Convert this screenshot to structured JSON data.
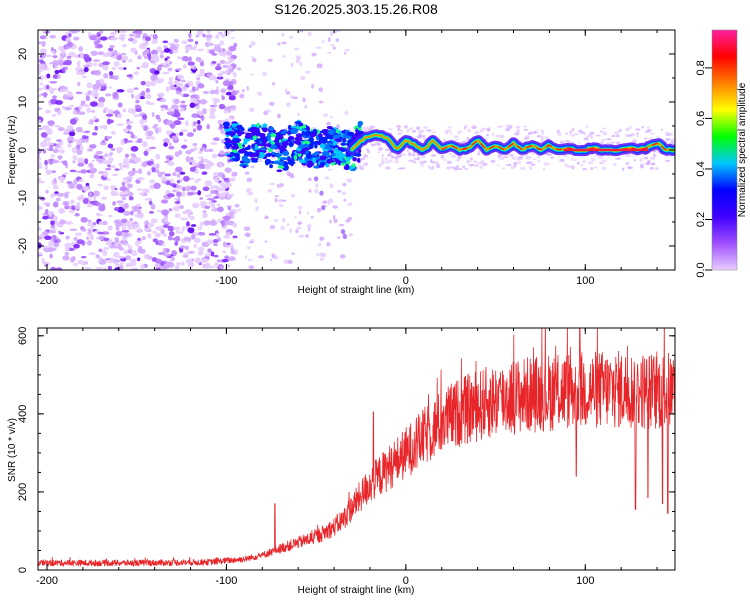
{
  "figure": {
    "title": "S126.2025.303.15.26.R08"
  },
  "chart_data": [
    {
      "type": "heatmap",
      "xlabel": "Height of straight line (km)",
      "ylabel": "Frequency (Hz)",
      "xlim": [
        -205,
        150
      ],
      "ylim": [
        -25,
        25
      ],
      "xticks": [
        -200,
        -100,
        0,
        100
      ],
      "yticks": [
        -20,
        -10,
        0,
        10,
        20
      ],
      "xtick_labels": [
        "-200",
        "-100",
        "0",
        "100"
      ],
      "ytick_labels": [
        "-20",
        "-10",
        "0",
        "10",
        "20"
      ],
      "trace": {
        "name": "frequency residual ridge",
        "x": [
          -100,
          -90,
          -80,
          -70,
          -60,
          -50,
          -40,
          -30,
          -25,
          -20,
          -15,
          -10,
          -5,
          0,
          5,
          10,
          15,
          20,
          25,
          30,
          35,
          40,
          45,
          50,
          55,
          60,
          65,
          70,
          75,
          80,
          85,
          90,
          95,
          100,
          105,
          110,
          115,
          120,
          125,
          130,
          135,
          140,
          145,
          150
        ],
        "y": [
          3.0,
          0.5,
          1.5,
          -0.5,
          2.0,
          0.0,
          1.0,
          0.0,
          2.0,
          3.0,
          3.0,
          2.5,
          0.0,
          2.0,
          1.0,
          0.0,
          2.0,
          0.0,
          1.0,
          0.0,
          0.5,
          2.0,
          0.0,
          1.0,
          0.0,
          1.5,
          0.0,
          1.0,
          0.0,
          1.0,
          0.0,
          0.5,
          0.0,
          0.0,
          0.5,
          0.0,
          0.0,
          0.0,
          0.5,
          0.0,
          0.5,
          1.5,
          0.0,
          0.0
        ]
      },
      "colorbar": {
        "label": "Normalized spectral amplitude",
        "range": [
          0.0,
          0.95
        ],
        "ticks": [
          0.0,
          0.2,
          0.4,
          0.6,
          0.8
        ],
        "tick_labels": [
          "0.0",
          "0.2",
          "0.4",
          "0.6",
          "0.8"
        ],
        "colors": [
          "#e8ccff",
          "#a050ff",
          "#4000ff",
          "#0000ff",
          "#00c8ff",
          "#00ff00",
          "#ffff00",
          "#ff8000",
          "#ff0000",
          "#ff20a0"
        ]
      },
      "noise_region": {
        "x_start": -205,
        "x_end": -95
      }
    },
    {
      "type": "line",
      "xlabel": "Height of straight line (km)",
      "ylabel": "SNR (10 * v/v)",
      "xlim": [
        -205,
        150
      ],
      "ylim": [
        0,
        620
      ],
      "xticks": [
        -200,
        -100,
        0,
        100
      ],
      "yticks": [
        0,
        200,
        400,
        600
      ],
      "xtick_labels": [
        "-200",
        "-100",
        "0",
        "100"
      ],
      "ytick_labels": [
        "0",
        "200",
        "400",
        "600"
      ],
      "series": [
        {
          "name": "SNR",
          "color": "#e8262a",
          "envelope": {
            "x": [
              -205,
              -150,
              -110,
              -90,
              -80,
              -70,
              -60,
              -50,
              -40,
              -35,
              -30,
              -25,
              -20,
              -10,
              0,
              10,
              20,
              30,
              40,
              50,
              60,
              70,
              80,
              90,
              100,
              110,
              120,
              130,
              140,
              150
            ],
            "y": [
              18,
              18,
              20,
              28,
              38,
              55,
              70,
              85,
              110,
              130,
              160,
              190,
              220,
              260,
              300,
              340,
              380,
              405,
              420,
              435,
              445,
              450,
              455,
              460,
              460,
              462,
              462,
              460,
              458,
              460
            ]
          },
          "spikes": [
            {
              "x": -73,
              "y": 170
            },
            {
              "x": -18,
              "y": 405
            },
            {
              "x": 97,
              "y": 625
            }
          ],
          "dips": [
            {
              "x": 95,
              "y": 240
            },
            {
              "x": 128,
              "y": 155
            },
            {
              "x": 135,
              "y": 185
            },
            {
              "x": 143,
              "y": 170
            },
            {
              "x": 146,
              "y": 145
            }
          ]
        }
      ]
    }
  ]
}
